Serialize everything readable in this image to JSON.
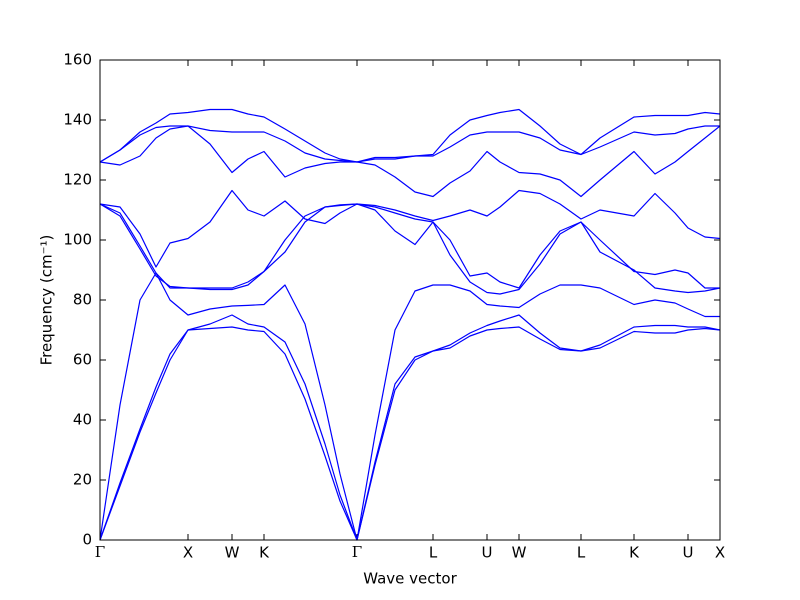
{
  "chart_data": {
    "type": "line",
    "xlabel": "Wave vector",
    "ylabel": "Frequency (cm⁻¹)",
    "x": [
      0,
      20,
      40,
      56,
      70,
      88,
      110,
      132,
      148,
      164,
      185,
      205,
      225,
      240,
      257,
      275,
      295,
      315,
      333,
      350,
      370,
      387,
      400,
      419,
      440,
      460,
      481,
      500,
      534,
      555,
      575,
      588,
      605,
      620
    ],
    "xlim": [
      0,
      620
    ],
    "xticks": [
      {
        "value": 0,
        "label": "Γ"
      },
      {
        "value": 88,
        "label": "X"
      },
      {
        "value": 132,
        "label": "W"
      },
      {
        "value": 164,
        "label": "K"
      },
      {
        "value": 257,
        "label": "Γ"
      },
      {
        "value": 333,
        "label": "L"
      },
      {
        "value": 387,
        "label": "U"
      },
      {
        "value": 419,
        "label": "W"
      },
      {
        "value": 481,
        "label": "L"
      },
      {
        "value": 534,
        "label": "K"
      },
      {
        "value": 588,
        "label": "U"
      },
      {
        "value": 620,
        "label": "X"
      }
    ],
    "ylim": [
      0,
      160
    ],
    "yticks": [
      0,
      20,
      40,
      60,
      80,
      100,
      120,
      140,
      160
    ],
    "grid": false,
    "series": [
      {
        "color": "#0000ff",
        "values": [
          0,
          18,
          36,
          49,
          60,
          70,
          70.5,
          71,
          70,
          69.5,
          62,
          47,
          28,
          13,
          0,
          25,
          50,
          60,
          63,
          64,
          68,
          70,
          70.5,
          71,
          67,
          63.5,
          63,
          64,
          69.5,
          69,
          69,
          70,
          70.5,
          70
        ]
      },
      {
        "color": "#0000ff",
        "values": [
          0,
          19,
          37,
          51,
          62,
          70,
          72,
          75,
          72,
          71,
          66,
          52,
          32,
          15,
          0,
          26,
          52,
          61,
          63,
          65,
          69,
          71.5,
          73,
          75,
          69,
          64,
          63,
          65,
          71,
          71.5,
          71.5,
          71,
          71,
          70
        ]
      },
      {
        "color": "#0000ff",
        "values": [
          0,
          45,
          80,
          89,
          80,
          75,
          77,
          78,
          78.2,
          78.5,
          85,
          72,
          45,
          22,
          0,
          35,
          70,
          83,
          85,
          85,
          83,
          78.5,
          78,
          77.5,
          82,
          85,
          85,
          84,
          78.5,
          80,
          79,
          77,
          74.5,
          74.5
        ]
      },
      {
        "color": "#0000ff",
        "values": [
          112,
          108,
          97,
          88,
          84.5,
          84,
          83.5,
          83.5,
          85,
          89.5,
          100,
          108,
          111,
          111.5,
          112,
          110,
          103,
          98.5,
          106,
          95,
          86,
          82.5,
          82,
          83.5,
          92,
          102,
          106,
          100,
          89.5,
          88.5,
          90,
          89,
          84,
          84
        ]
      },
      {
        "color": "#0000ff",
        "values": [
          112,
          109,
          98,
          89,
          84,
          84,
          84,
          84,
          86,
          89.5,
          96,
          106,
          111,
          111.7,
          112,
          111,
          109,
          107,
          106,
          100,
          88,
          89,
          86,
          84,
          95,
          103,
          106,
          96,
          90,
          84,
          83,
          82.5,
          83,
          84
        ]
      },
      {
        "color": "#0000ff",
        "values": [
          112,
          111,
          102,
          91,
          99,
          100.5,
          106,
          116.5,
          110,
          108,
          113,
          107,
          105.5,
          109,
          112,
          111.5,
          110,
          108,
          106.5,
          108,
          110,
          108,
          111,
          116.5,
          115.5,
          112,
          107,
          110,
          108,
          115.5,
          109,
          104,
          101,
          100.5
        ]
      },
      {
        "color": "#0000ff",
        "values": [
          126,
          125,
          128,
          134,
          137,
          138,
          132,
          122.5,
          127,
          129.5,
          121,
          124,
          125.5,
          126,
          126,
          125,
          121,
          116,
          114.5,
          119,
          123,
          129.5,
          126,
          122.5,
          122,
          120,
          114.5,
          120,
          129.5,
          122,
          126,
          129.5,
          134,
          138
        ]
      },
      {
        "color": "#0000ff",
        "values": [
          126,
          130,
          135,
          137.5,
          138,
          138,
          136.5,
          136,
          136,
          136,
          133,
          129,
          127,
          126.5,
          126,
          127,
          127,
          128,
          128,
          131,
          135,
          136,
          136,
          136,
          134,
          130,
          128.5,
          131,
          136,
          135,
          135.5,
          137,
          138,
          138
        ]
      },
      {
        "color": "#0000ff",
        "values": [
          126,
          130,
          136,
          139,
          142,
          142.5,
          143.5,
          143.5,
          142,
          141,
          137,
          133,
          129,
          127,
          126,
          127.5,
          127.5,
          128,
          128.5,
          135,
          140,
          141.5,
          142.5,
          143.5,
          138,
          132,
          128.5,
          134,
          141,
          141.5,
          141.5,
          141.5,
          142.5,
          142
        ]
      }
    ]
  }
}
